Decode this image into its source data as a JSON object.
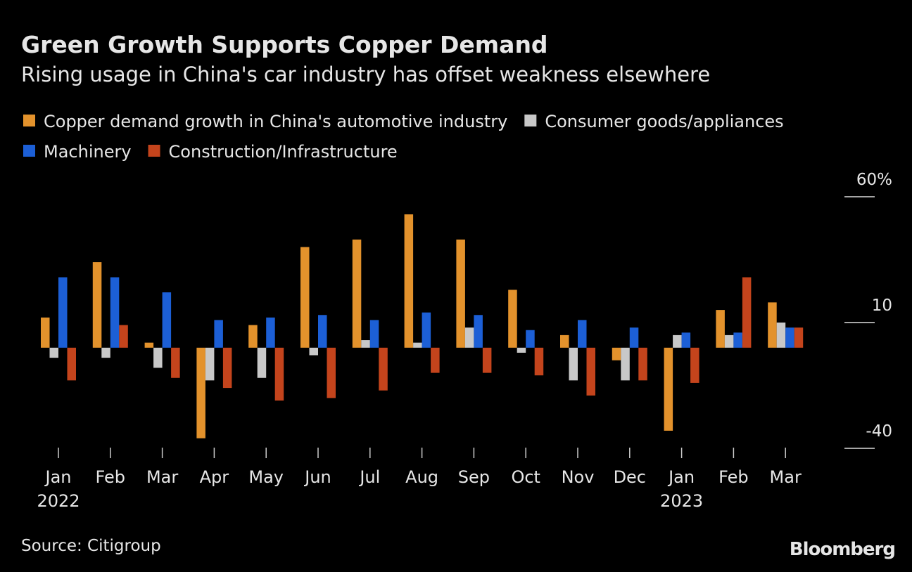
{
  "chart_data": {
    "type": "bar",
    "title": "Green Growth Supports Copper Demand",
    "subtitle": "Rising usage in China's car industry has offset weakness elsewhere",
    "source": "Source: Citigroup",
    "brand": "Bloomberg",
    "categories": [
      [
        "Jan",
        "2022"
      ],
      [
        "Feb"
      ],
      [
        "Mar"
      ],
      [
        "Apr"
      ],
      [
        "May"
      ],
      [
        "Jun"
      ],
      [
        "Jul"
      ],
      [
        "Aug"
      ],
      [
        "Sep"
      ],
      [
        "Oct"
      ],
      [
        "Nov"
      ],
      [
        "Dec"
      ],
      [
        "Jan",
        "2023"
      ],
      [
        "Feb"
      ],
      [
        "Mar"
      ]
    ],
    "series": [
      {
        "name": "Copper demand growth in China's automotive industry",
        "color": "#e3922c",
        "values": [
          12,
          34,
          2,
          -36,
          9,
          40,
          43,
          53,
          43,
          23,
          5,
          -5,
          -33,
          15,
          18
        ]
      },
      {
        "name": "Consumer goods/appliances",
        "color": "#c8c8c8",
        "values": [
          -4,
          -4,
          -8,
          -13,
          -12,
          -3,
          3,
          2,
          8,
          -2,
          -13,
          -13,
          5,
          5,
          10
        ]
      },
      {
        "name": "Machinery",
        "color": "#1c5fd6",
        "values": [
          28,
          28,
          22,
          11,
          12,
          13,
          11,
          14,
          13,
          7,
          11,
          8,
          6,
          6,
          8
        ]
      },
      {
        "name": "Construction/Infrastructure",
        "color": "#c4441c",
        "values": [
          -13,
          9,
          -12,
          -16,
          -21,
          -20,
          -17,
          -10,
          -10,
          -11,
          -19,
          -13,
          -14,
          28,
          8
        ]
      }
    ],
    "ylim": [
      -40,
      60
    ],
    "yticks": [
      {
        "value": 60,
        "label": "60%"
      },
      10,
      -40
    ]
  }
}
